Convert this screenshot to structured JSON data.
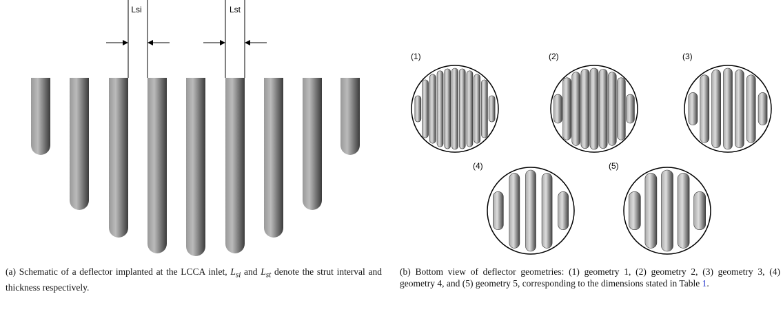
{
  "figure_a": {
    "labels": {
      "interval": "Lsi",
      "thickness": "Lst"
    }
  },
  "figure_b": {
    "panels": [
      "(1)",
      "(2)",
      "(3)",
      "(4)",
      "(5)"
    ]
  },
  "caption_a": {
    "tag": "(a)",
    "segments": [
      "Schematic of a deflector implanted at the LCCA inlet, ",
      {
        "symbol": "L",
        "sub": "si"
      },
      " and ",
      {
        "symbol": "L",
        "sub": "st"
      },
      " denote the strut interval and thickness respectively."
    ]
  },
  "caption_b": {
    "tag": "(b)",
    "text": "Bottom view of deflector geometries: (1) geometry 1, (2) geometry 2, (3) geometry 3, (4) geometry 4, and (5) geometry 5, corresponding to the dimensions stated in Table ",
    "link": "1",
    "end": "."
  }
}
